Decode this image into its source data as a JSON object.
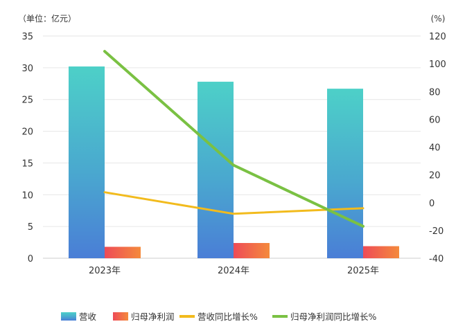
{
  "chart_data": {
    "type": "bar",
    "categories": [
      "2023年",
      "2024年",
      "2025年"
    ],
    "series": [
      {
        "name": "营收",
        "kind": "bar",
        "axis": "left",
        "values": [
          30.2,
          27.8,
          26.7
        ],
        "color": "#4ecdc4"
      },
      {
        "name": "归母净利润",
        "kind": "bar",
        "axis": "left",
        "values": [
          1.8,
          2.4,
          1.9
        ],
        "color": "#f0684a"
      },
      {
        "name": "营收同比增长%",
        "kind": "line",
        "axis": "right",
        "values": [
          7.5,
          -8,
          -4
        ],
        "color": "#f2bb1d"
      },
      {
        "name": "归母净利润同比增长%",
        "kind": "line",
        "axis": "right",
        "values": [
          109,
          27,
          -17
        ],
        "color": "#7ac143"
      }
    ],
    "left_axis": {
      "unit_label": "（单位：亿元）",
      "min": 0,
      "max": 35,
      "step": 5
    },
    "right_axis": {
      "unit_label": "(%)",
      "min": -40,
      "max": 120,
      "step": 20
    },
    "grid": true,
    "legend_position": "bottom"
  }
}
